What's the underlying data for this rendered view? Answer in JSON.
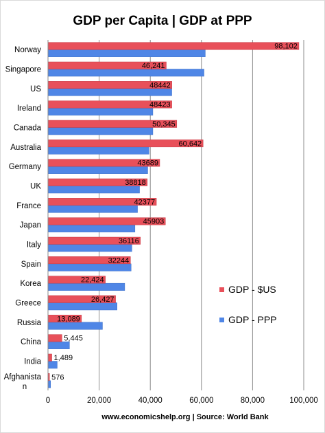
{
  "chart_data": {
    "type": "bar",
    "orientation": "horizontal",
    "title": "GDP per Capita | GDP at PPP",
    "source": "www.economicshelp.org | Source: World Bank",
    "categories": [
      "Norway",
      "Singapore",
      "US",
      "Ireland",
      "Canada",
      "Australia",
      "Germany",
      "UK",
      "France",
      "Japan",
      "Italy",
      "Spain",
      "Korea",
      "Greece",
      "Russia",
      "China",
      "India",
      "Afghanistan"
    ],
    "category_display": [
      "Norway",
      "Singapore",
      "US",
      "Ireland",
      "Canada",
      "Australia",
      "Germany",
      "UK",
      "France",
      "Japan",
      "Italy",
      "Spain",
      "Korea",
      "Greece",
      "Russia",
      "China",
      "India",
      "Afghanista|n"
    ],
    "series": [
      {
        "name": "GDP -  $US",
        "color": "#e8505a",
        "values": [
          98102,
          46241,
          48442,
          48423,
          50345,
          60642,
          43689,
          38818,
          42377,
          45903,
          36116,
          32244,
          22424,
          26427,
          13089,
          5445,
          1489,
          576
        ],
        "labels": [
          "98,102",
          "46,241",
          "48442",
          "48423",
          "50,345",
          "60,642",
          "43689",
          "38818",
          "42377",
          "45903",
          "36116",
          "32244",
          "22,424",
          "26,427",
          "13,089",
          "5,445",
          "1,489",
          "576"
        ]
      },
      {
        "name": "GDP - PPP",
        "color": "#4f86e6",
        "values": [
          61500,
          61000,
          48400,
          41000,
          41000,
          39500,
          39000,
          35800,
          35000,
          34000,
          32800,
          32500,
          30000,
          27000,
          21300,
          8400,
          3600,
          1000
        ]
      }
    ],
    "xlim": [
      0,
      100000
    ],
    "xticks": [
      0,
      20000,
      40000,
      60000,
      80000,
      100000
    ],
    "xtick_labels": [
      "0",
      "20,000",
      "40,000",
      "60,000",
      "80,000",
      "100,000"
    ],
    "grid": "vertical",
    "legend": "right"
  }
}
